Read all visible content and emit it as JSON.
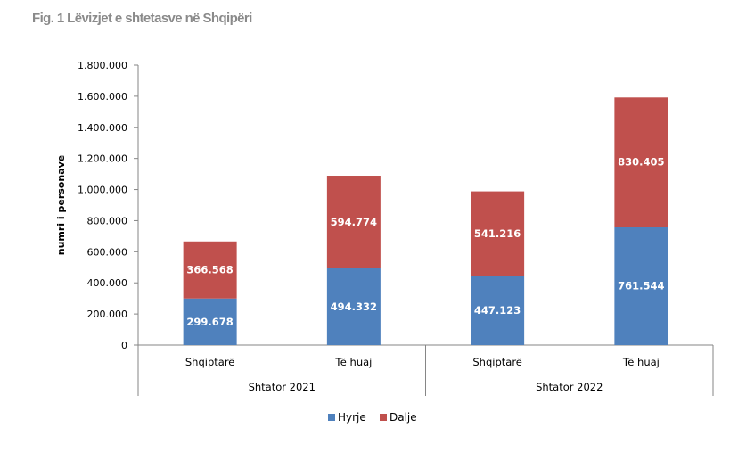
{
  "title": "Fig. 1 Lëvizjet e shtetasve në Shqipëri",
  "chart_data": {
    "type": "bar",
    "stacked": true,
    "ylabel": "numri i personave",
    "ylim": [
      0,
      1800000
    ],
    "yticks": [
      {
        "value": 0,
        "label": "0"
      },
      {
        "value": 200000,
        "label": "200.000"
      },
      {
        "value": 400000,
        "label": "400.000"
      },
      {
        "value": 600000,
        "label": "600.000"
      },
      {
        "value": 800000,
        "label": "800.000"
      },
      {
        "value": 1000000,
        "label": "1.000.000"
      },
      {
        "value": 1200000,
        "label": "1.200.000"
      },
      {
        "value": 1400000,
        "label": "1.400.000"
      },
      {
        "value": 1600000,
        "label": "1.600.000"
      },
      {
        "value": 1800000,
        "label": "1.800.000"
      }
    ],
    "groups": [
      "Shtator 2021",
      "Shtator 2022"
    ],
    "categories": [
      "Shqiptarë",
      "Të huaj",
      "Shqiptarë",
      "Të huaj"
    ],
    "series": [
      {
        "name": "Hyrje",
        "color": "#4f81bd",
        "values": [
          299678,
          494332,
          447123,
          761544
        ],
        "labels": [
          "299.678",
          "494.332",
          "447.123",
          "761.544"
        ]
      },
      {
        "name": "Dalje",
        "color": "#c0504d",
        "values": [
          366568,
          594774,
          541216,
          830405
        ],
        "labels": [
          "366.568",
          "594.774",
          "541.216",
          "830.405"
        ]
      }
    ],
    "legend_position": "bottom",
    "grid": false
  }
}
